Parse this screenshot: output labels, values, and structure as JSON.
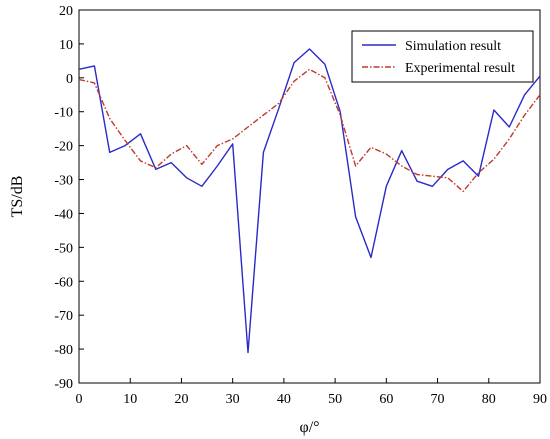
{
  "chart_data": {
    "type": "line",
    "xlabel": "φ/°",
    "ylabel": "TS/dB",
    "xlim": [
      0,
      90
    ],
    "ylim": [
      -90,
      20
    ],
    "xticks": [
      0,
      10,
      20,
      30,
      40,
      50,
      60,
      70,
      80,
      90
    ],
    "yticks": [
      20,
      10,
      0,
      -10,
      -20,
      -30,
      -40,
      -50,
      -60,
      -70,
      -80,
      -90
    ],
    "grid": false,
    "legend_position": "top-right",
    "series": [
      {
        "name": "Simulation result",
        "color": "#2a2ac8",
        "style": "solid",
        "x": [
          0,
          3,
          6,
          9,
          12,
          15,
          18,
          21,
          24,
          27,
          30,
          33,
          36,
          39,
          42,
          45,
          48,
          51,
          54,
          57,
          60,
          63,
          66,
          69,
          72,
          75,
          78,
          81,
          84,
          87,
          90
        ],
        "y": [
          2.5,
          3.5,
          -22,
          -20,
          -16.5,
          -27,
          -25,
          -29.5,
          -32,
          -26,
          -19.5,
          -81,
          -22,
          -9,
          4.5,
          8.5,
          4,
          -10,
          -41,
          -53,
          -32,
          -21.5,
          -30.5,
          -32,
          -27,
          -24.5,
          -29,
          -9.5,
          -14.5,
          -5,
          0.5
        ]
      },
      {
        "name": "Experimental result",
        "color": "#c0392b",
        "style": "dashdot",
        "x": [
          0,
          3,
          6,
          9,
          12,
          15,
          18,
          21,
          24,
          27,
          30,
          33,
          36,
          39,
          42,
          45,
          48,
          51,
          54,
          57,
          60,
          63,
          66,
          69,
          72,
          75,
          78,
          81,
          84,
          87,
          90
        ],
        "y": [
          -0.5,
          -1.5,
          -12,
          -18.5,
          -24.5,
          -26.5,
          -22.5,
          -20,
          -25.5,
          -20,
          -18,
          -14.5,
          -11,
          -7.5,
          -1,
          2.5,
          0,
          -11,
          -26,
          -20.5,
          -22.5,
          -26,
          -28.5,
          -29,
          -29.5,
          -33.5,
          -28,
          -24,
          -18,
          -11,
          -5
        ]
      }
    ]
  }
}
